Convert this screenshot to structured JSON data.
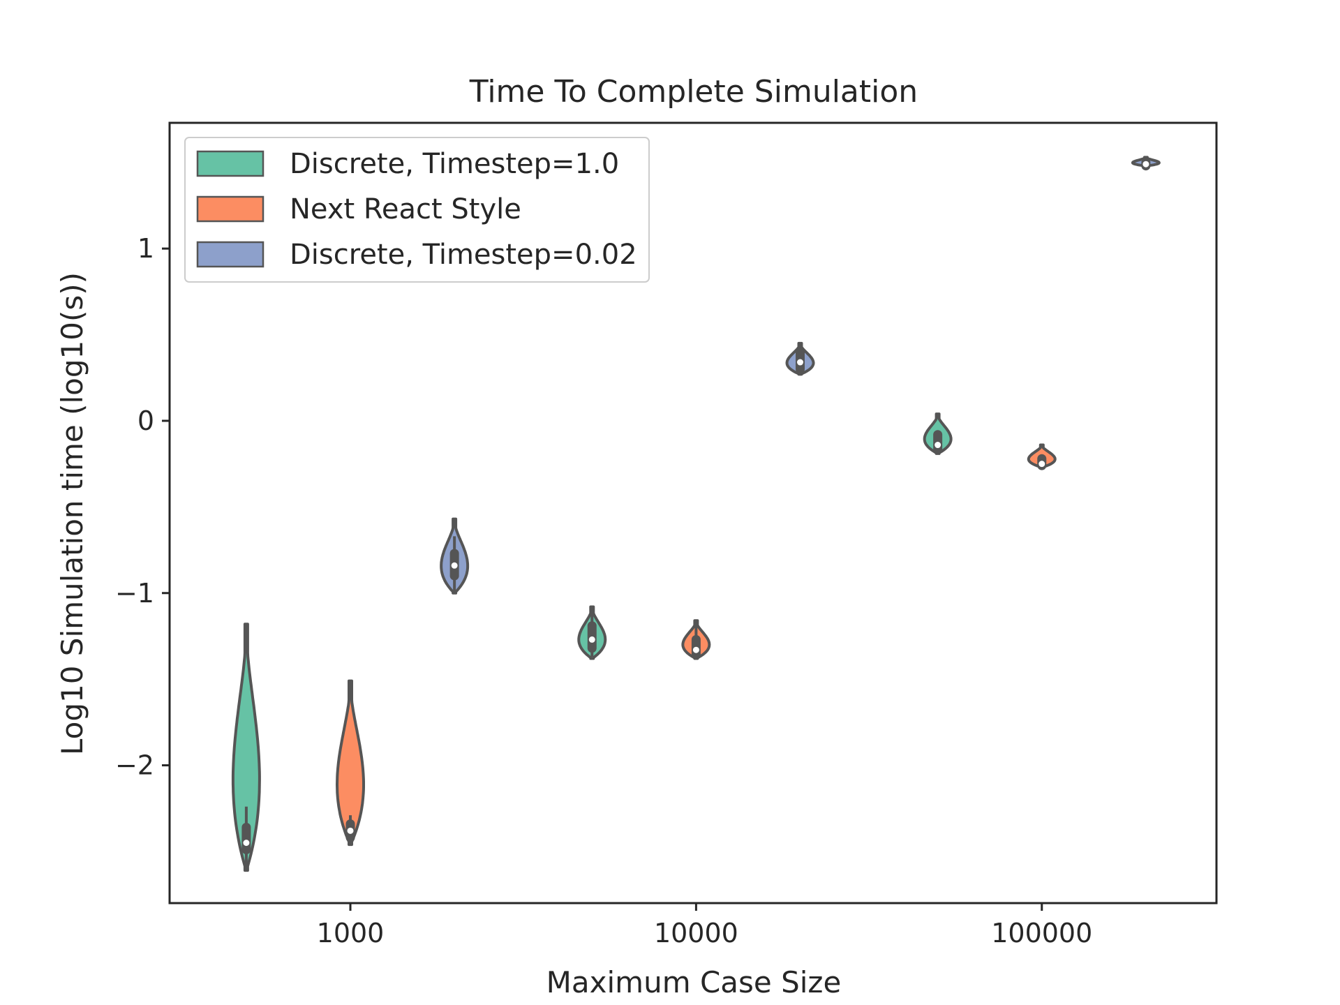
{
  "chart_data": {
    "type": "violin",
    "title": "Time To Complete Simulation",
    "xlabel": "Maximum Case Size",
    "ylabel": "Log10 Simulation time (log10(s))",
    "x_scale": "log",
    "xlim": [
      300,
      320000
    ],
    "ylim": [
      -2.8,
      1.73
    ],
    "x_ticks": [
      1000,
      10000,
      100000
    ],
    "x_tick_labels": [
      "1000",
      "10000",
      "100000"
    ],
    "y_ticks": [
      -2,
      -1,
      0,
      1
    ],
    "y_tick_labels": [
      "−2",
      "−1",
      "0",
      "1"
    ],
    "grid": false,
    "legend_position": "upper-left",
    "series": [
      {
        "name": "Discrete, Timestep=1.0",
        "color": "#66c2a5",
        "groups": [
          {
            "x": 500,
            "min": -2.61,
            "max": -1.18,
            "q1": -2.49,
            "median": -2.45,
            "q3": -2.36,
            "whisker_low": -2.61,
            "whisker_high": -2.24
          },
          {
            "x": 5000,
            "min": -1.38,
            "max": -1.08,
            "q1": -1.32,
            "median": -1.27,
            "q3": -1.19,
            "whisker_low": -1.37,
            "whisker_high": -1.09
          },
          {
            "x": 50000,
            "min": -0.19,
            "max": 0.04,
            "q1": -0.17,
            "median": -0.14,
            "q3": -0.08,
            "whisker_low": -0.19,
            "whisker_high": -0.06
          }
        ]
      },
      {
        "name": "Next React Style",
        "color": "#fc8d62",
        "groups": [
          {
            "x": 1000,
            "min": -2.46,
            "max": -1.51,
            "q1": -2.42,
            "median": -2.38,
            "q3": -2.34,
            "whisker_low": -2.44,
            "whisker_high": -2.29
          },
          {
            "x": 10000,
            "min": -1.38,
            "max": -1.16,
            "q1": -1.36,
            "median": -1.33,
            "q3": -1.27,
            "whisker_low": -1.38,
            "whisker_high": -1.17
          },
          {
            "x": 100000,
            "min": -0.27,
            "max": -0.14,
            "q1": -0.26,
            "median": -0.25,
            "q3": -0.22,
            "whisker_low": -0.27,
            "whisker_high": -0.21
          }
        ]
      },
      {
        "name": "Discrete, Timestep=0.02",
        "color": "#8da0cb",
        "groups": [
          {
            "x": 2000,
            "min": -1.0,
            "max": -0.57,
            "q1": -0.9,
            "median": -0.84,
            "q3": -0.77,
            "whisker_low": -1.0,
            "whisker_high": -0.67
          },
          {
            "x": 20000,
            "min": 0.27,
            "max": 0.45,
            "q1": 0.3,
            "median": 0.34,
            "q3": 0.4,
            "whisker_low": 0.29,
            "whisker_high": 0.44
          },
          {
            "x": 200000,
            "min": 1.48,
            "max": 1.53,
            "q1": 1.48,
            "median": 1.49,
            "q3": 1.5,
            "whisker_low": 1.48,
            "whisker_high": 1.5
          }
        ]
      }
    ]
  }
}
